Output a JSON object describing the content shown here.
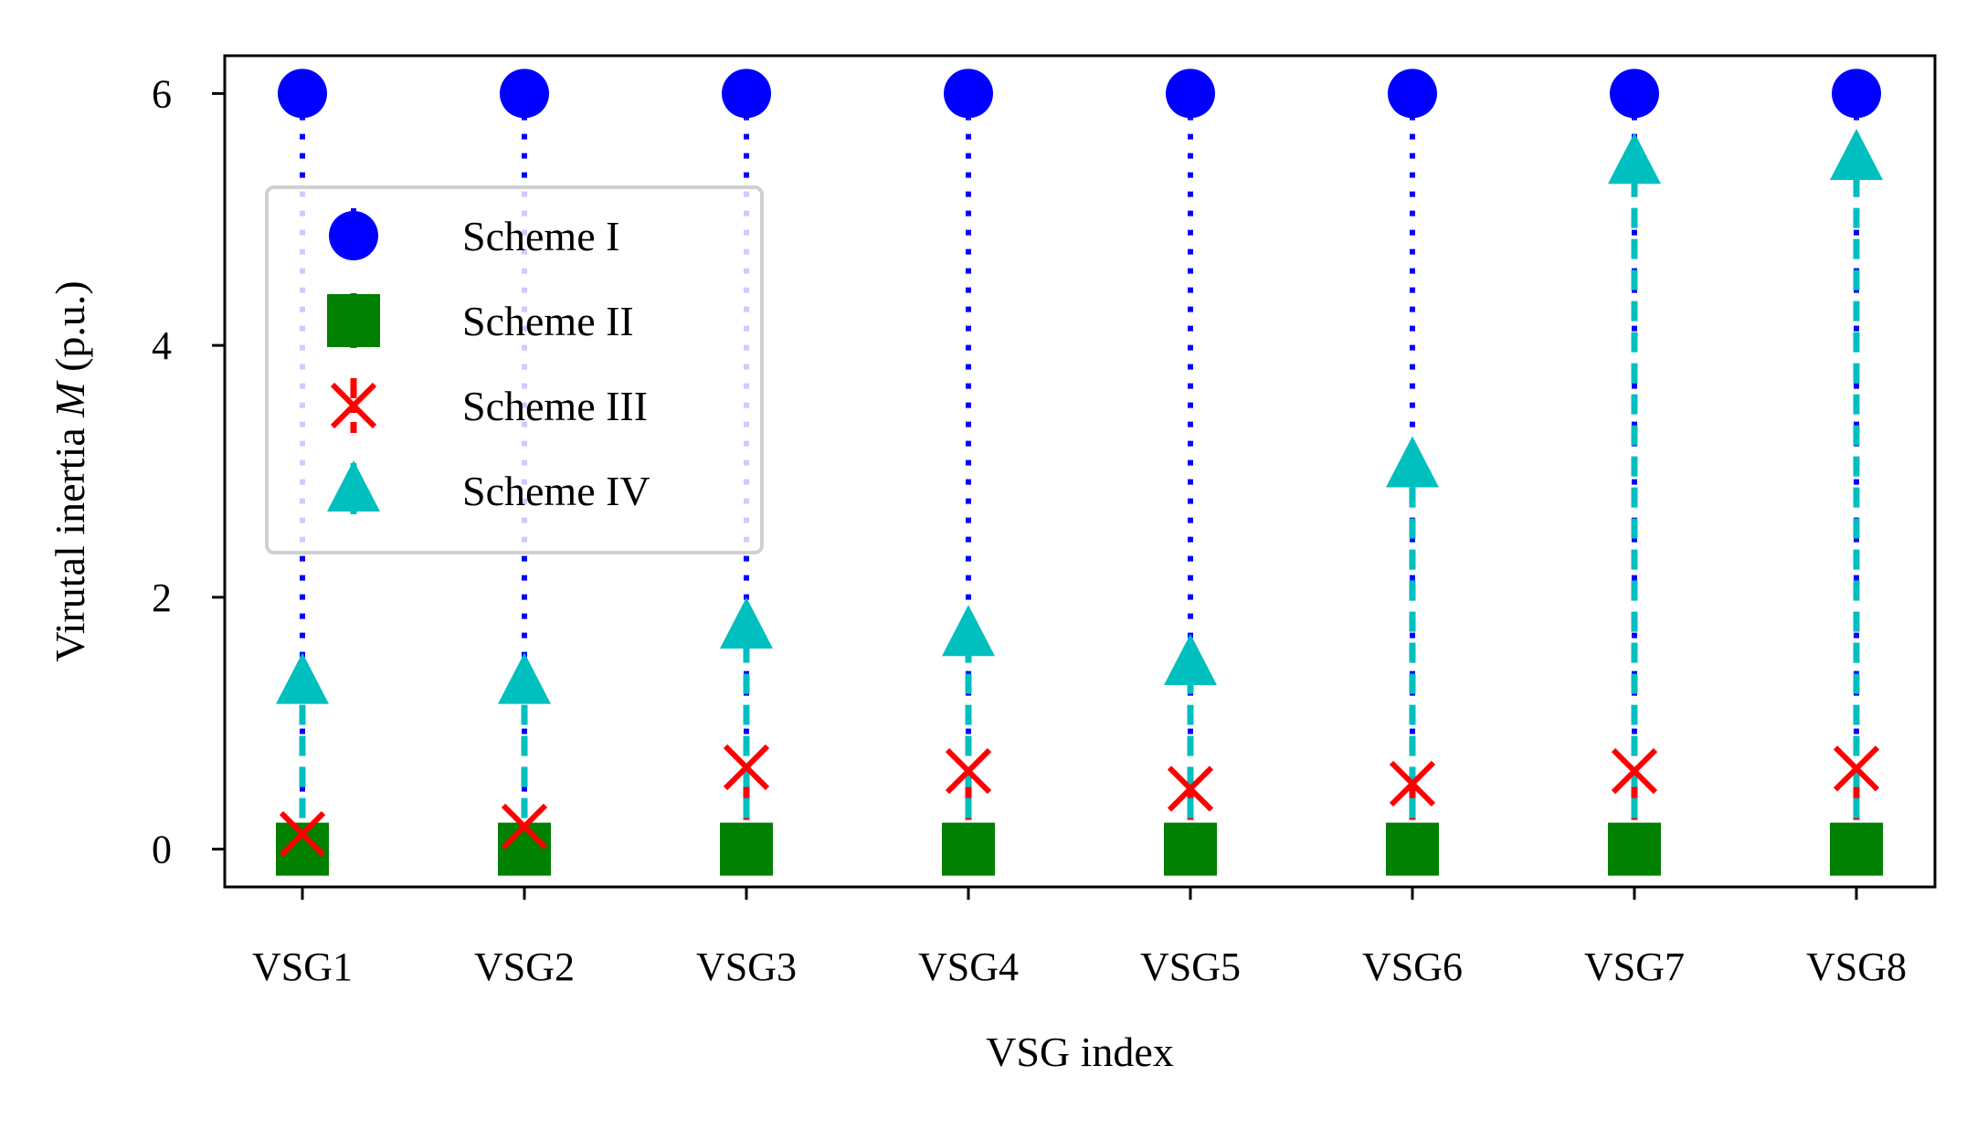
{
  "chart_data": {
    "type": "scatter",
    "title": "",
    "xlabel": "VSG index",
    "ylabel_main": "Virutal inertia ",
    "ylabel_italic": "M",
    "ylabel_tail": " (p.u.)",
    "categories": [
      "VSG1",
      "VSG2",
      "VSG3",
      "VSG4",
      "VSG5",
      "VSG6",
      "VSG7",
      "VSG8"
    ],
    "yticks": [
      "0",
      "2",
      "4",
      "6"
    ],
    "ylim": [
      -0.3,
      6.3
    ],
    "grid": false,
    "legend_position": "upper-left",
    "series": [
      {
        "name": "Scheme I",
        "marker": "circle",
        "linestyle": "dotted",
        "color": "#0000ff",
        "values": [
          6,
          6,
          6,
          6,
          6,
          6,
          6,
          6
        ]
      },
      {
        "name": "Scheme II",
        "marker": "square",
        "linestyle": "solid",
        "color": "#008000",
        "values": [
          0,
          0,
          0,
          0,
          0,
          0,
          0,
          0
        ]
      },
      {
        "name": "Scheme III",
        "marker": "x",
        "linestyle": "dashdot",
        "color": "#ff0000",
        "values": [
          0.12,
          0.18,
          0.65,
          0.62,
          0.48,
          0.52,
          0.62,
          0.64
        ]
      },
      {
        "name": "Scheme IV",
        "marker": "triangle",
        "linestyle": "dashed",
        "color": "#00bfbf",
        "values": [
          1.32,
          1.32,
          1.76,
          1.7,
          1.47,
          3.04,
          5.45,
          5.48
        ]
      }
    ]
  }
}
